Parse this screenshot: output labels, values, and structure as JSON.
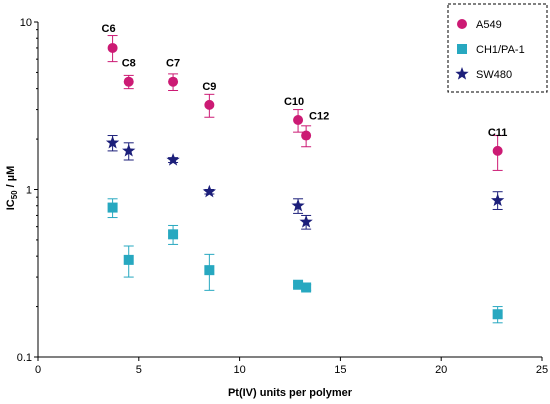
{
  "chart_data": {
    "type": "scatter",
    "xlabel": "Pt(IV) units per polymer",
    "ylabel_main": "IC",
    "ylabel_sub": "50",
    "ylabel_tail": " / µM",
    "xlim": [
      0,
      25
    ],
    "ylim": [
      0.1,
      10
    ],
    "yscale": "log",
    "x_ticks": [
      0,
      5,
      10,
      15,
      20,
      25
    ],
    "y_ticks": [
      0.1,
      1,
      10
    ],
    "y_tick_labels": [
      "0.1",
      "1",
      "10"
    ],
    "legend_position": "top-right",
    "series": [
      {
        "name": "A549",
        "color": "#cc1a74",
        "marker": "circle",
        "points": [
          {
            "x": 3.7,
            "y": 7.0,
            "lo": 5.8,
            "hi": 8.3
          },
          {
            "x": 4.5,
            "y": 4.4,
            "lo": 4.0,
            "hi": 4.8
          },
          {
            "x": 6.7,
            "y": 4.4,
            "lo": 3.9,
            "hi": 4.9
          },
          {
            "x": 8.5,
            "y": 3.2,
            "lo": 2.7,
            "hi": 3.7
          },
          {
            "x": 12.9,
            "y": 2.6,
            "lo": 2.2,
            "hi": 3.0
          },
          {
            "x": 13.3,
            "y": 2.1,
            "lo": 1.8,
            "hi": 2.4
          },
          {
            "x": 22.8,
            "y": 1.7,
            "lo": 1.3,
            "hi": 2.1
          }
        ]
      },
      {
        "name": "CH1/PA-1",
        "color": "#27a8c0",
        "marker": "square",
        "points": [
          {
            "x": 3.7,
            "y": 0.78,
            "lo": 0.68,
            "hi": 0.88
          },
          {
            "x": 4.5,
            "y": 0.38,
            "lo": 0.3,
            "hi": 0.46
          },
          {
            "x": 6.7,
            "y": 0.54,
            "lo": 0.47,
            "hi": 0.61
          },
          {
            "x": 8.5,
            "y": 0.33,
            "lo": 0.25,
            "hi": 0.41
          },
          {
            "x": 12.9,
            "y": 0.27,
            "lo": 0.26,
            "hi": 0.28
          },
          {
            "x": 13.3,
            "y": 0.26,
            "lo": 0.25,
            "hi": 0.27
          },
          {
            "x": 22.8,
            "y": 0.18,
            "lo": 0.16,
            "hi": 0.2
          }
        ]
      },
      {
        "name": "SW480",
        "color": "#1c1f7a",
        "marker": "star",
        "points": [
          {
            "x": 3.7,
            "y": 1.9,
            "lo": 1.7,
            "hi": 2.1
          },
          {
            "x": 4.5,
            "y": 1.7,
            "lo": 1.5,
            "hi": 1.9
          },
          {
            "x": 6.7,
            "y": 1.5,
            "lo": 1.45,
            "hi": 1.55
          },
          {
            "x": 8.5,
            "y": 0.97,
            "lo": 0.94,
            "hi": 1.0
          },
          {
            "x": 12.9,
            "y": 0.8,
            "lo": 0.72,
            "hi": 0.88
          },
          {
            "x": 13.3,
            "y": 0.64,
            "lo": 0.58,
            "hi": 0.7
          },
          {
            "x": 22.8,
            "y": 0.86,
            "lo": 0.76,
            "hi": 0.97
          }
        ]
      }
    ],
    "annotations": [
      {
        "text": "C6",
        "x": 3.5,
        "y": 7.0
      },
      {
        "text": "C8",
        "x": 4.5,
        "y": 4.4
      },
      {
        "text": "C7",
        "x": 6.7,
        "y": 4.4
      },
      {
        "text": "C9",
        "x": 8.5,
        "y": 3.2
      },
      {
        "text": "C10",
        "x": 12.9,
        "y": 2.6
      },
      {
        "text": "C12",
        "x": 13.3,
        "y": 2.1
      },
      {
        "text": "C11",
        "x": 22.8,
        "y": 1.7
      }
    ]
  }
}
